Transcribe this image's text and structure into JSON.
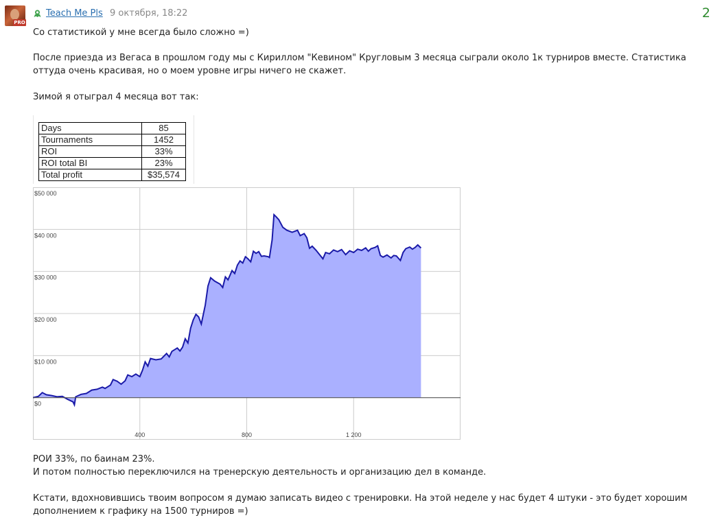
{
  "post": {
    "author": "Teach Me Pls",
    "date": "9 октября, 18:22",
    "votes": "2",
    "avatar_badge": "PRO",
    "paragraphs": [
      "Со статистикой у мне всегда было сложно =)",
      "После приезда из Вегаса в прошлом году мы с Кириллом \"Кевином\" Кругловым 3 месяца сыграли около 1к турниров вместе. Статистика оттуда очень красивая, но о моем уровне игры ничего не скажет.",
      "Зимой я отыграл 4 месяца вот так:",
      "РОИ 33%, по баинам 23%.",
      "И потом полностью переключился на тренерскую деятельность и организацию дел в команде.",
      "Кстати, вдохновившись твоим вопросом я думаю записать видео с тренировки. На этой неделе у нас будет 4 штуки - это будет хорошим дополнением к графику на 1500 турниров =)"
    ]
  },
  "stats_table": [
    {
      "label": "Days",
      "value": "85"
    },
    {
      "label": "Tournaments",
      "value": "1452"
    },
    {
      "label": "ROI",
      "value": "33%"
    },
    {
      "label": "ROI total BI",
      "value": "23%"
    },
    {
      "label": "Total profit",
      "value": "$35,574"
    }
  ],
  "colors": {
    "link": "#2a6fb0",
    "votes": "#2e8b2e",
    "area_fill": "#aab0ff",
    "line": "#1a1aa8"
  },
  "chart_data": {
    "type": "area",
    "y_ticks": [
      "$50 000",
      "$40 000",
      "$30 000",
      "$20 000",
      "$10 000",
      "$0"
    ],
    "x_ticks": [
      "400",
      "800",
      "1 200"
    ],
    "x_tick_values": [
      400,
      800,
      1200
    ],
    "y_tick_values": [
      50000,
      40000,
      30000,
      20000,
      10000,
      0
    ],
    "xlim": [
      0,
      1600
    ],
    "ylim": [
      -10000,
      50000
    ],
    "grid": true,
    "points": [
      [
        0,
        0
      ],
      [
        20,
        300
      ],
      [
        35,
        1200
      ],
      [
        50,
        700
      ],
      [
        70,
        500
      ],
      [
        90,
        200
      ],
      [
        110,
        300
      ],
      [
        130,
        -400
      ],
      [
        150,
        -1000
      ],
      [
        155,
        -1700
      ],
      [
        160,
        200
      ],
      [
        180,
        800
      ],
      [
        200,
        1000
      ],
      [
        220,
        1800
      ],
      [
        240,
        2000
      ],
      [
        260,
        2500
      ],
      [
        270,
        2200
      ],
      [
        290,
        3000
      ],
      [
        300,
        4300
      ],
      [
        315,
        3900
      ],
      [
        330,
        3200
      ],
      [
        345,
        4000
      ],
      [
        355,
        5400
      ],
      [
        370,
        5000
      ],
      [
        385,
        5600
      ],
      [
        400,
        5000
      ],
      [
        410,
        6500
      ],
      [
        420,
        8500
      ],
      [
        430,
        7500
      ],
      [
        440,
        9300
      ],
      [
        460,
        9000
      ],
      [
        480,
        9200
      ],
      [
        500,
        10500
      ],
      [
        510,
        9700
      ],
      [
        520,
        11000
      ],
      [
        540,
        11800
      ],
      [
        550,
        11100
      ],
      [
        560,
        12000
      ],
      [
        570,
        14000
      ],
      [
        580,
        13000
      ],
      [
        590,
        16500
      ],
      [
        600,
        18500
      ],
      [
        610,
        19800
      ],
      [
        620,
        19200
      ],
      [
        630,
        17500
      ],
      [
        645,
        22000
      ],
      [
        655,
        26500
      ],
      [
        665,
        28500
      ],
      [
        680,
        27700
      ],
      [
        700,
        27000
      ],
      [
        710,
        26200
      ],
      [
        720,
        28700
      ],
      [
        730,
        28000
      ],
      [
        745,
        30200
      ],
      [
        755,
        29500
      ],
      [
        765,
        31500
      ],
      [
        775,
        32500
      ],
      [
        785,
        32000
      ],
      [
        795,
        33500
      ],
      [
        805,
        33000
      ],
      [
        815,
        32300
      ],
      [
        825,
        34800
      ],
      [
        835,
        34300
      ],
      [
        845,
        34700
      ],
      [
        855,
        33600
      ],
      [
        865,
        33700
      ],
      [
        880,
        33500
      ],
      [
        885,
        33300
      ],
      [
        895,
        37500
      ],
      [
        902,
        43500
      ],
      [
        910,
        43000
      ],
      [
        920,
        42300
      ],
      [
        935,
        40500
      ],
      [
        950,
        39800
      ],
      [
        970,
        39300
      ],
      [
        990,
        39800
      ],
      [
        1000,
        38500
      ],
      [
        1015,
        39000
      ],
      [
        1025,
        38000
      ],
      [
        1035,
        35500
      ],
      [
        1045,
        36000
      ],
      [
        1060,
        35000
      ],
      [
        1075,
        33800
      ],
      [
        1085,
        33000
      ],
      [
        1095,
        34500
      ],
      [
        1110,
        34200
      ],
      [
        1125,
        35100
      ],
      [
        1140,
        34700
      ],
      [
        1155,
        35200
      ],
      [
        1170,
        34000
      ],
      [
        1185,
        34900
      ],
      [
        1200,
        34500
      ],
      [
        1215,
        35300
      ],
      [
        1230,
        35000
      ],
      [
        1245,
        35600
      ],
      [
        1255,
        34800
      ],
      [
        1265,
        35400
      ],
      [
        1280,
        35700
      ],
      [
        1290,
        36100
      ],
      [
        1300,
        33800
      ],
      [
        1310,
        33400
      ],
      [
        1325,
        33900
      ],
      [
        1340,
        33200
      ],
      [
        1350,
        33800
      ],
      [
        1360,
        33700
      ],
      [
        1375,
        32600
      ],
      [
        1385,
        34500
      ],
      [
        1395,
        35400
      ],
      [
        1410,
        35800
      ],
      [
        1420,
        35300
      ],
      [
        1430,
        35700
      ],
      [
        1440,
        36300
      ],
      [
        1452,
        35574
      ]
    ]
  }
}
